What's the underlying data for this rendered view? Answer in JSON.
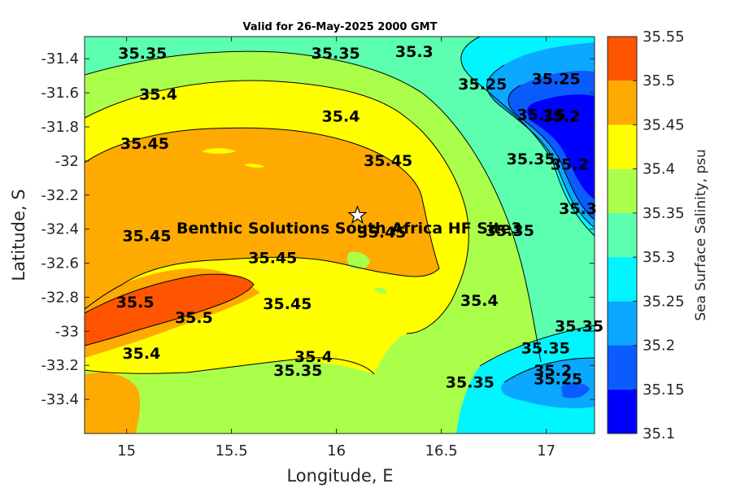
{
  "chart_data": {
    "type": "contourf",
    "title": "Valid for 26-May-2025 2000 GMT",
    "xlabel": "Longitude, E",
    "ylabel": "Latitude, S",
    "xlim": [
      14.8,
      17.23
    ],
    "ylim": [
      -33.6,
      -31.27
    ],
    "xticks": [
      15,
      15.5,
      16,
      16.5,
      17
    ],
    "xtick_labels": [
      "15",
      "15.5",
      "16",
      "16.5",
      "17"
    ],
    "yticks": [
      -31.4,
      -31.6,
      -31.8,
      -32,
      -32.2,
      -32.4,
      -32.6,
      -32.8,
      -33,
      -33.2,
      -33.4
    ],
    "ytick_labels": [
      "-31.4",
      "-31.6",
      "-31.8",
      "-32",
      "-32.2",
      "-32.4",
      "-32.6",
      "-32.8",
      "-33",
      "-33.2",
      "-33.4"
    ],
    "colorbar": {
      "label": "Sea Surface Salinity, psu",
      "levels": [
        35.1,
        35.15,
        35.2,
        35.25,
        35.3,
        35.35,
        35.4,
        35.45,
        35.5,
        35.55
      ],
      "tick_labels": [
        "35.1",
        "35.15",
        "35.2",
        "35.25",
        "35.3",
        "35.35",
        "35.4",
        "35.45",
        "35.5",
        "35.55"
      ],
      "colors": [
        "#0000ff",
        "#0a5cff",
        "#0aa8ff",
        "#00f5ff",
        "#5cffb0",
        "#aaff4a",
        "#ffff00",
        "#ffaa00",
        "#ff5500"
      ]
    },
    "contour_labels": [
      {
        "text": "35.35",
        "lon": 14.96,
        "lat": -31.4
      },
      {
        "text": "35.35",
        "lon": 15.88,
        "lat": -31.4
      },
      {
        "text": "35.3",
        "lon": 16.28,
        "lat": -31.39
      },
      {
        "text": "35.25",
        "lon": 16.58,
        "lat": -31.58
      },
      {
        "text": "35.25",
        "lon": 16.93,
        "lat": -31.55
      },
      {
        "text": "35.15",
        "lon": 16.86,
        "lat": -31.76
      },
      {
        "text": "35.2",
        "lon": 16.98,
        "lat": -31.77
      },
      {
        "text": "35.4",
        "lon": 15.06,
        "lat": -31.64
      },
      {
        "text": "35.4",
        "lon": 15.93,
        "lat": -31.77
      },
      {
        "text": "35.45",
        "lon": 14.97,
        "lat": -31.93
      },
      {
        "text": "35.45",
        "lon": 16.13,
        "lat": -32.03
      },
      {
        "text": "35.35",
        "lon": 16.81,
        "lat": -32.02
      },
      {
        "text": "35.2",
        "lon": 17.02,
        "lat": -32.05
      },
      {
        "text": "35.3",
        "lon": 17.06,
        "lat": -32.31
      },
      {
        "text": "35.35",
        "lon": 16.71,
        "lat": -32.44
      },
      {
        "text": "35.45",
        "lon": 14.98,
        "lat": -32.47
      },
      {
        "text": "35.45",
        "lon": 16.1,
        "lat": -32.45
      },
      {
        "text": "35.45",
        "lon": 15.58,
        "lat": -32.6
      },
      {
        "text": "35.5",
        "lon": 14.95,
        "lat": -32.86
      },
      {
        "text": "35.5",
        "lon": 15.23,
        "lat": -32.95
      },
      {
        "text": "35.45",
        "lon": 15.65,
        "lat": -32.87
      },
      {
        "text": "35.4",
        "lon": 16.59,
        "lat": -32.85
      },
      {
        "text": "35.4",
        "lon": 14.98,
        "lat": -33.16
      },
      {
        "text": "35.4",
        "lon": 15.8,
        "lat": -33.18
      },
      {
        "text": "35.35",
        "lon": 15.7,
        "lat": -33.26
      },
      {
        "text": "35.35",
        "lon": 16.52,
        "lat": -33.33
      },
      {
        "text": "35.35",
        "lon": 16.88,
        "lat": -33.13
      },
      {
        "text": "35.35",
        "lon": 17.04,
        "lat": -33.0
      },
      {
        "text": "35.2",
        "lon": 16.94,
        "lat": -33.26
      },
      {
        "text": "35.25",
        "lon": 16.94,
        "lat": -33.31
      }
    ],
    "site": {
      "label": "Benthic Solutions South Africa HF Site3",
      "lon": 16.1,
      "lat": -32.32,
      "marker": "star"
    }
  }
}
